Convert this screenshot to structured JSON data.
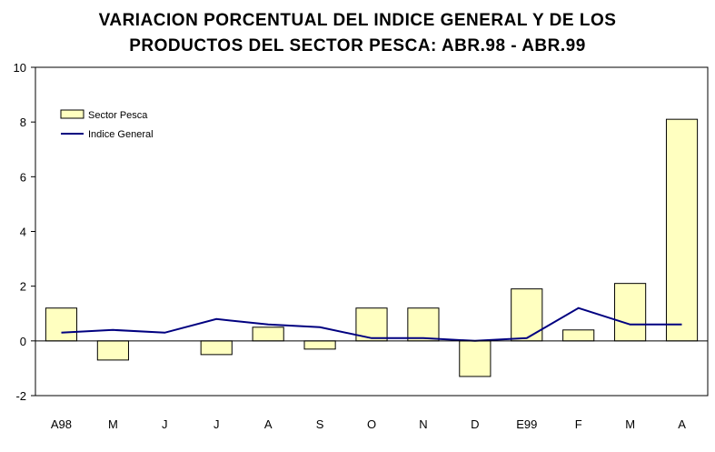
{
  "chart_data": {
    "type": "bar",
    "title_line1": "VARIACION PORCENTUAL DEL INDICE GENERAL Y DE LOS",
    "title_line2": "PRODUCTOS DEL SECTOR PESCA: ABR.98 - ABR.99",
    "categories": [
      "A98",
      "M",
      "J",
      "J",
      "A",
      "S",
      "O",
      "N",
      "D",
      "E99",
      "F",
      "M",
      "A"
    ],
    "series": [
      {
        "name": "Sector Pesca",
        "type": "bar",
        "values": [
          1.2,
          -0.7,
          0.0,
          -0.5,
          0.5,
          -0.3,
          1.2,
          1.2,
          -1.3,
          1.9,
          0.4,
          2.1,
          8.1
        ]
      },
      {
        "name": "Indice General",
        "type": "line",
        "values": [
          0.3,
          0.4,
          0.3,
          0.8,
          0.6,
          0.5,
          0.1,
          0.1,
          0.0,
          0.1,
          1.2,
          0.6,
          0.6
        ]
      }
    ],
    "ylim": [
      -2,
      10
    ],
    "yticks": [
      "-2",
      "0",
      "2",
      "4",
      "6",
      "8",
      "10"
    ],
    "legend_position": "top-left",
    "colors": {
      "bar_fill": "#FFFFC0",
      "bar_stroke": "#000000",
      "line": "#000080"
    }
  }
}
